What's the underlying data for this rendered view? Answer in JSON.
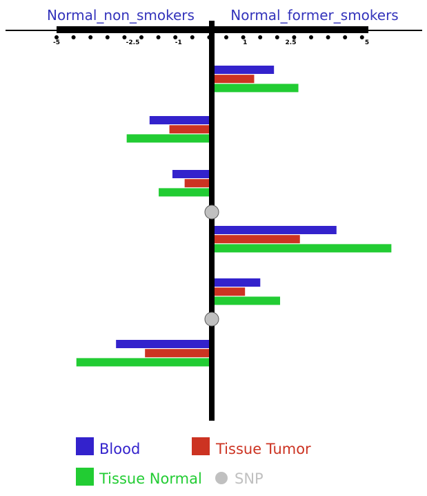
{
  "chart_data": {
    "type": "bar",
    "orientation": "horizontal-diverging",
    "left_label": "Normal_non_smokers",
    "right_label": "Normal_former_smokers",
    "xlim": [
      -5,
      5
    ],
    "ticks": [
      {
        "value": -5,
        "label": "-5"
      },
      {
        "value": -2.5,
        "label": "-2.5"
      },
      {
        "value": -1,
        "label": "-1"
      },
      {
        "value": 1,
        "label": "1"
      },
      {
        "value": 2.5,
        "label": "2.5"
      },
      {
        "value": 5,
        "label": "5"
      }
    ],
    "series": [
      {
        "name": "Blood",
        "color": "#3322cc"
      },
      {
        "name": "Tissue Tumor",
        "color": "#cc3322"
      },
      {
        "name": "Tissue Normal",
        "color": "#22cc33"
      }
    ],
    "groups": [
      {
        "values": [
          1.95,
          1.3,
          2.75
        ]
      },
      {
        "values": [
          -1.95,
          -1.3,
          -2.7
        ]
      },
      {
        "values": [
          -1.2,
          -0.8,
          -1.65
        ]
      },
      {
        "snp": true
      },
      {
        "values": [
          4.0,
          2.8,
          5.8
        ]
      },
      {
        "values": [
          1.5,
          1.0,
          2.15
        ]
      },
      {
        "snp": true
      },
      {
        "values": [
          -3.05,
          -2.1,
          -4.35
        ]
      }
    ],
    "snp_label": "SNP",
    "snp_color": "#c0c0c0"
  }
}
